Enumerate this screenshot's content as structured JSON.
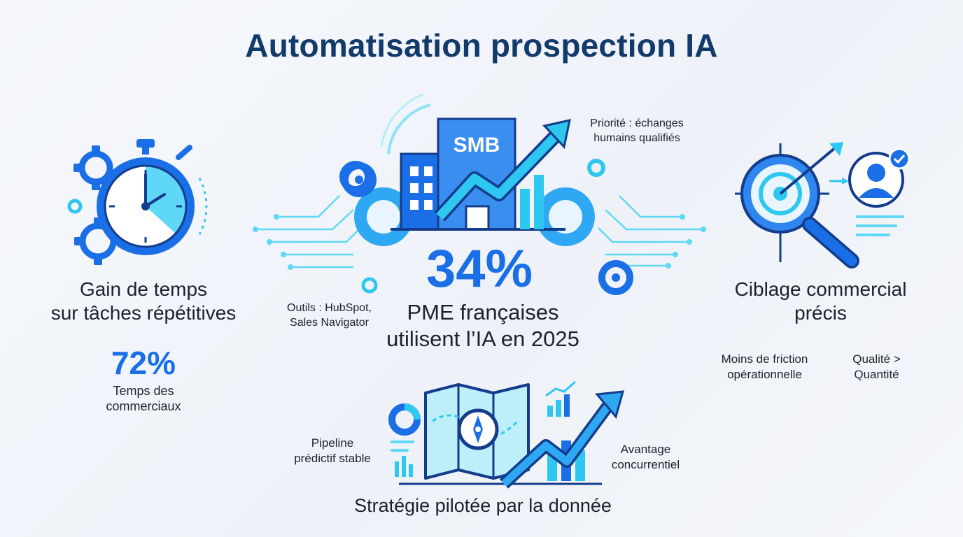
{
  "title": "Automatisation prospection IA",
  "left_panel": {
    "heading_line1": "Gain de temps",
    "heading_line2": "sur tâches répétitives",
    "stat": "72%",
    "stat_caption_line1": "Temps des",
    "stat_caption_line2": "commerciaux"
  },
  "center_panel": {
    "building_sign": "SMB",
    "priority_line1": "Priorité : échanges",
    "priority_line2": "humains qualifiés",
    "tools_line1": "Outils : HubSpot,",
    "tools_line2": "Sales Navigator",
    "stat": "34%",
    "stat_caption_line1": "PME françaises",
    "stat_caption_line2": "utilisent l’IA en 2025"
  },
  "right_panel": {
    "heading_line1": "Ciblage commercial",
    "heading_line2": "précis",
    "note1_line1": "Moins de friction",
    "note1_line2": "opérationnelle",
    "note2_line1": "Qualité >",
    "note2_line2": "Quantité"
  },
  "bottom_panel": {
    "left_note_line1": "Pipeline",
    "left_note_line2": "prédictif stable",
    "right_note_line1": "Avantage",
    "right_note_line2": "concurrentiel",
    "caption": "Stratégie pilotée par la donnée"
  },
  "colors": {
    "primary_blue": "#1a6fe6",
    "cyan": "#2ec7f0",
    "navy": "#123a6b",
    "dark_outline": "#143c8c"
  },
  "icons": [
    "stopwatch-icon",
    "gear-icon",
    "building-icon",
    "growth-arrow-icon",
    "target-icon",
    "magnifier-icon",
    "user-icon",
    "check-icon",
    "map-icon",
    "compass-icon",
    "pie-chart-icon",
    "bar-chart-icon"
  ]
}
